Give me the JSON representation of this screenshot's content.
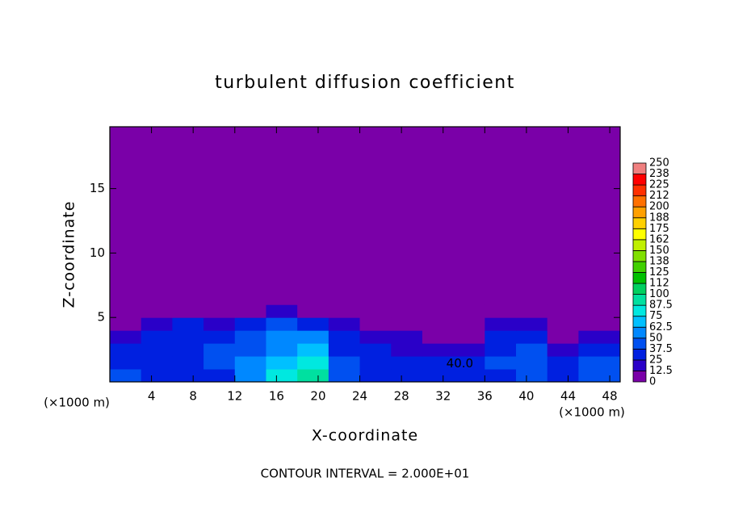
{
  "chart_data": {
    "type": "heatmap",
    "title": "turbulent diffusion coefficient",
    "xlabel": "X-coordinate",
    "ylabel": "Z-coordinate",
    "x_unit_left": "(×1000 m)",
    "x_unit_right": "(×1000 m)",
    "footer": "CONTOUR INTERVAL = 2.000E+01",
    "xlim": [
      0,
      49
    ],
    "ylim": [
      0,
      19.8
    ],
    "xticks": [
      4,
      8,
      12,
      16,
      20,
      24,
      28,
      32,
      36,
      40,
      44,
      48
    ],
    "yticks": [
      5,
      10,
      15
    ],
    "xbins": [
      0,
      3,
      6,
      9,
      12,
      15,
      18,
      21,
      24,
      27,
      30,
      33,
      36,
      39,
      42,
      45,
      49
    ],
    "ybins": [
      0,
      1,
      2,
      3,
      4,
      5,
      6,
      19.8
    ],
    "z": [
      [
        40,
        25,
        30,
        35,
        60,
        75,
        90,
        45,
        35,
        30,
        30,
        30,
        35,
        40,
        35,
        45
      ],
      [
        30,
        25,
        30,
        40,
        55,
        70,
        80,
        40,
        35,
        30,
        25,
        25,
        40,
        45,
        30,
        40
      ],
      [
        25,
        30,
        35,
        40,
        45,
        60,
        65,
        35,
        30,
        20,
        20,
        20,
        35,
        40,
        20,
        30
      ],
      [
        20,
        30,
        35,
        35,
        40,
        55,
        50,
        30,
        20,
        15,
        10,
        10,
        30,
        30,
        10,
        20
      ],
      [
        5,
        20,
        25,
        20,
        30,
        40,
        35,
        20,
        10,
        5,
        5,
        5,
        20,
        15,
        5,
        10
      ],
      [
        0,
        0,
        5,
        0,
        10,
        15,
        10,
        5,
        0,
        0,
        5,
        5,
        5,
        5,
        0,
        5
      ],
      [
        0,
        0,
        0,
        0,
        0,
        0,
        0,
        0,
        0,
        0,
        0,
        0,
        0,
        0,
        0,
        0
      ]
    ],
    "annotations": [
      {
        "text": "40.0",
        "x": 33.6,
        "y": 1.4
      }
    ],
    "colorbar": {
      "ticks": [
        0,
        12.5,
        25,
        37.5,
        50,
        62.5,
        75,
        87.5,
        100,
        {
          "value": 112.5,
          "label": "112"
        },
        125,
        {
          "value": 137.5,
          "label": "138"
        },
        150,
        {
          "value": 162.5,
          "label": "162"
        },
        175,
        {
          "value": 187.5,
          "label": "188"
        },
        200,
        {
          "value": 212.5,
          "label": "212"
        },
        225,
        {
          "value": 237.5,
          "label": "238"
        },
        250
      ],
      "colors": [
        "#7a00a8",
        "#2a00c8",
        "#0020e0",
        "#0050f0",
        "#0088ff",
        "#00c0ff",
        "#00e8e0",
        "#00e0a0",
        "#00d060",
        "#00c000",
        "#40d000",
        "#80e000",
        "#c0f000",
        "#ffff00",
        "#ffd000",
        "#ffa000",
        "#ff7000",
        "#ff3000",
        "#ff0000",
        "#f08080"
      ]
    }
  }
}
